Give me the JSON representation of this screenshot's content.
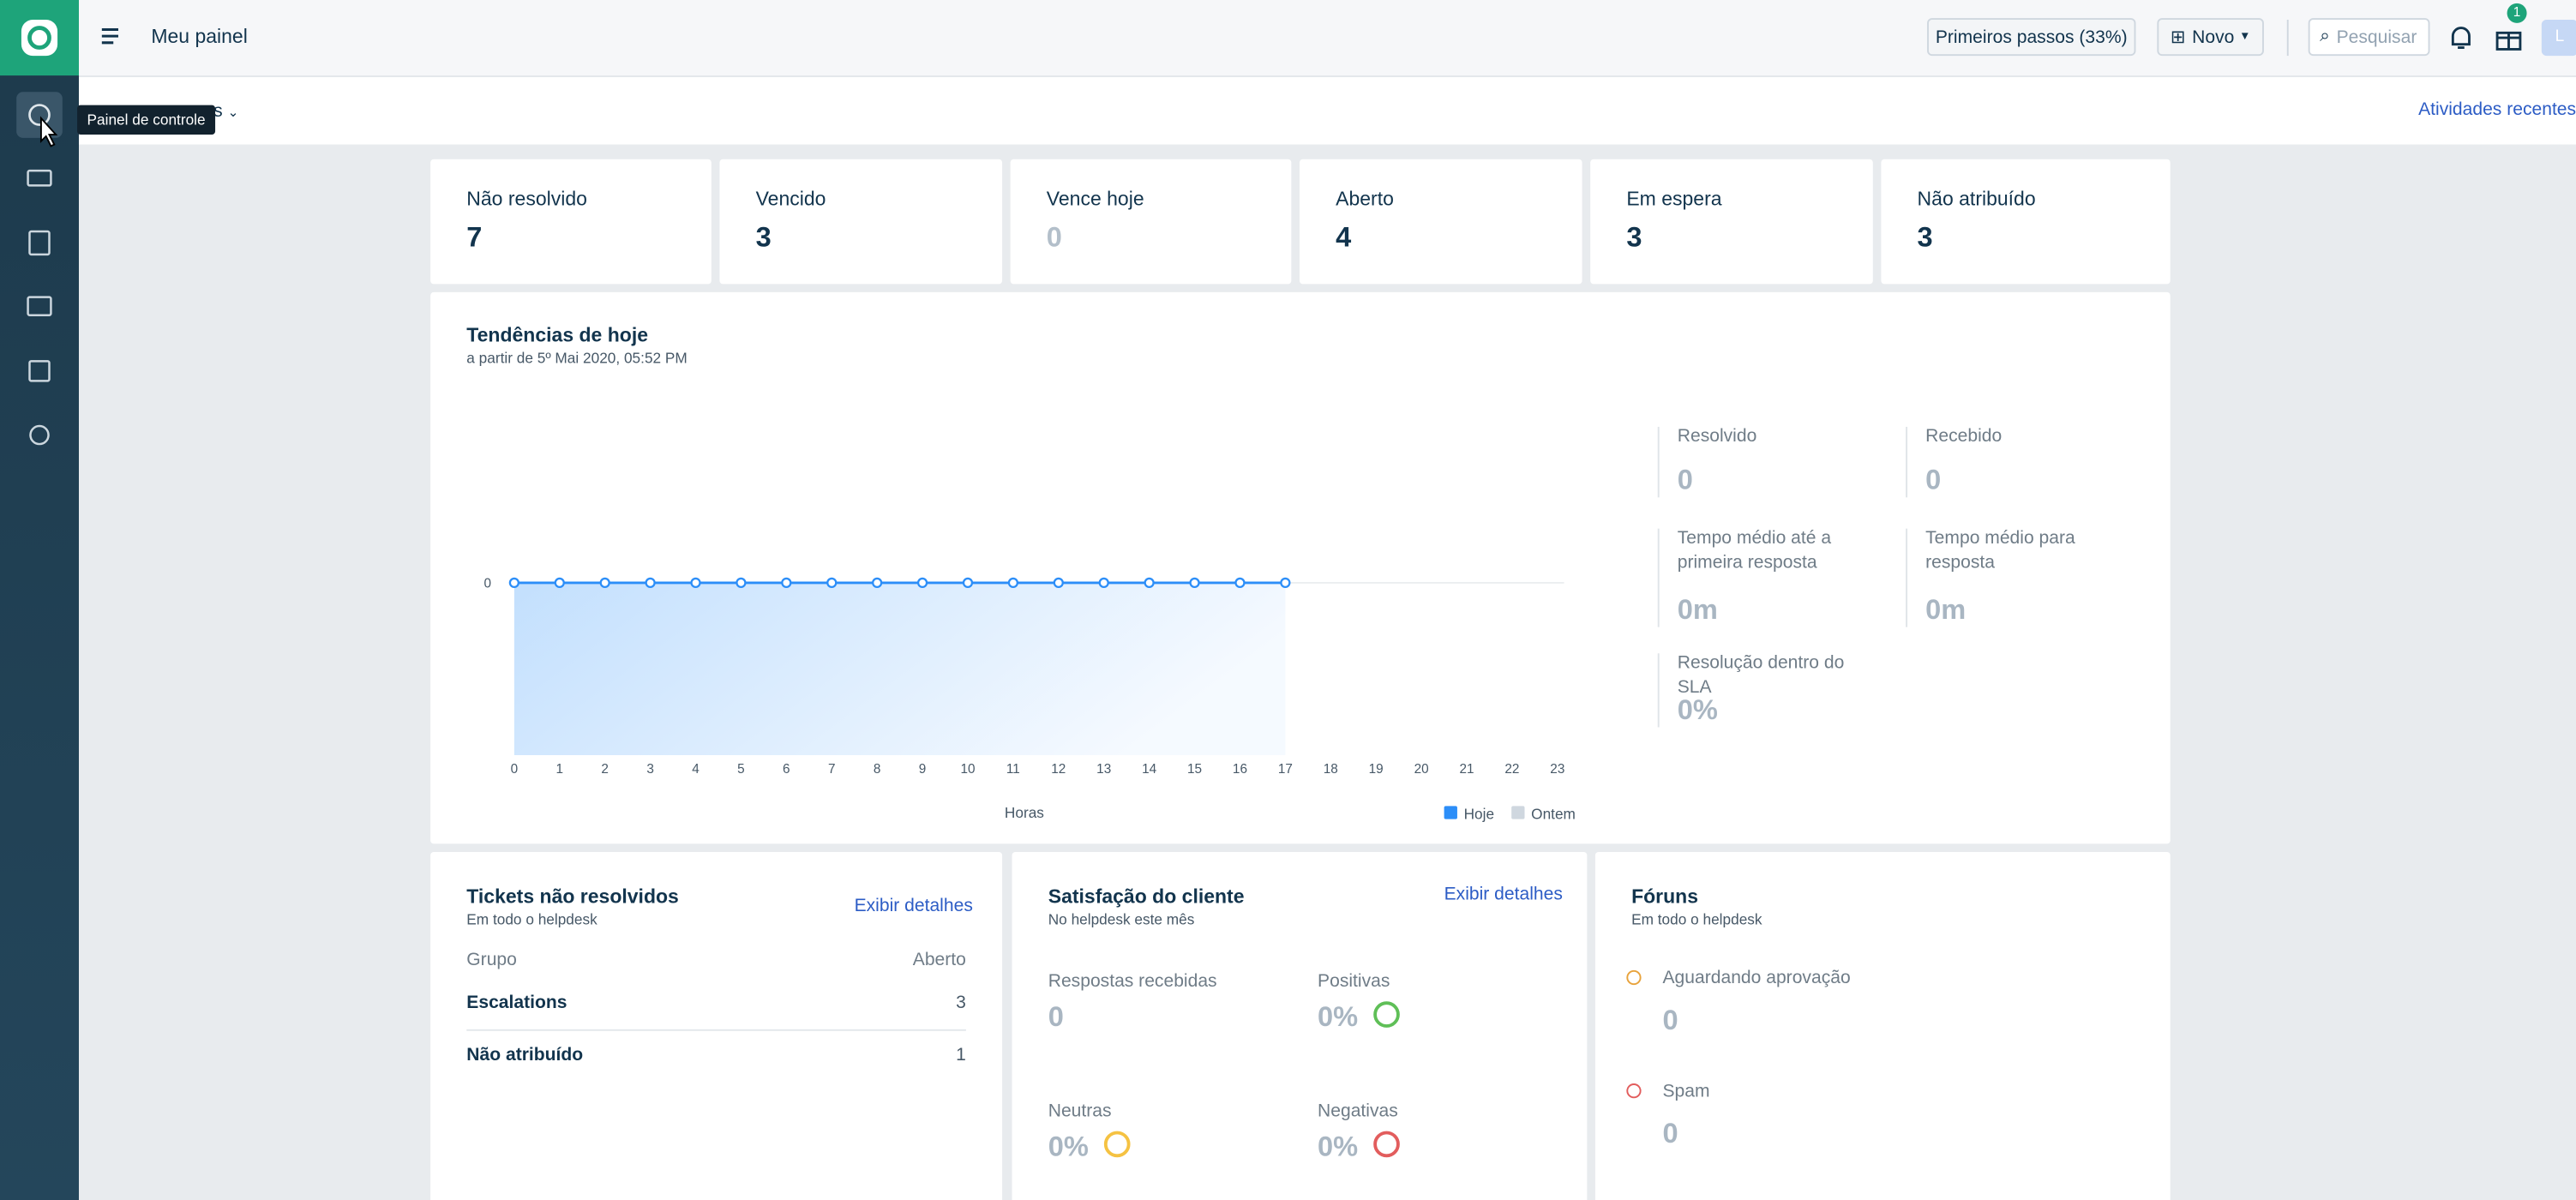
{
  "header": {
    "title": "Meu painel",
    "first_steps": "Primeiros passos (33%)",
    "new": "Novo",
    "search": "Pesquisar",
    "gift_badge": "1",
    "avatar": "L"
  },
  "sidebar": {
    "tooltip": "Painel de controle"
  },
  "subbar": {
    "filter_fragment": "s",
    "recent": "Atividades recentes"
  },
  "stats": [
    {
      "label": "Não resolvido",
      "value": 7
    },
    {
      "label": "Vencido",
      "value": 3
    },
    {
      "label": "Vence hoje",
      "value": 0
    },
    {
      "label": "Aberto",
      "value": 4
    },
    {
      "label": "Em espera",
      "value": 3
    },
    {
      "label": "Não atribuído",
      "value": 3
    }
  ],
  "trends": {
    "title": "Tendências de hoje",
    "subtitle": "a partir de 5º Mai 2020, 05:52 PM"
  },
  "chart_data": {
    "type": "line",
    "x": [
      0,
      1,
      2,
      3,
      4,
      5,
      6,
      7,
      8,
      9,
      10,
      11,
      12,
      13,
      14,
      15,
      16,
      17,
      18,
      19,
      20,
      21,
      22,
      23
    ],
    "xlim": [
      0,
      23
    ],
    "xticks": [
      0,
      1,
      2,
      3,
      4,
      5,
      6,
      7,
      8,
      9,
      10,
      11,
      12,
      13,
      14,
      15,
      16,
      17,
      18,
      19,
      20,
      21,
      22,
      23
    ],
    "xlabel": "Horas",
    "ylim": [
      -1,
      1
    ],
    "yticks": [
      0
    ],
    "grid": true,
    "series": [
      {
        "name": "Hoje",
        "color": "#2c8ef8",
        "values": [
          0,
          0,
          0,
          0,
          0,
          0,
          0,
          0,
          0,
          0,
          0,
          0,
          0,
          0,
          0,
          0,
          0,
          0,
          null,
          null,
          null,
          null,
          null,
          null
        ]
      },
      {
        "name": "Ontem",
        "color": "#cfd7df",
        "values": [
          null,
          null,
          null,
          null,
          null,
          null,
          null,
          null,
          null,
          null,
          null,
          null,
          null,
          null,
          null,
          null,
          null,
          null,
          null,
          null,
          null,
          null,
          null,
          null
        ]
      }
    ]
  },
  "metrics": [
    {
      "label": "Resolvido",
      "value": 0
    },
    {
      "label": "Recebido",
      "value": 0
    },
    {
      "label": "Tempo médio até a primeira resposta",
      "value": "0m"
    },
    {
      "label": "Tempo médio para resposta",
      "value": "0m"
    },
    {
      "label": "Resolução dentro do SLA",
      "value": "0%"
    }
  ],
  "tickets": {
    "title": "Tickets não resolvidos",
    "subtitle": "Em todo o helpdesk",
    "link": "Exibir detalhes",
    "columns": [
      "Grupo",
      "Aberto"
    ],
    "rows": [
      [
        "Escalations",
        3
      ],
      [
        "Não atribuído",
        1
      ]
    ]
  },
  "satisfaction": {
    "title": "Satisfação do cliente",
    "subtitle": "No helpdesk este mês",
    "link": "Exibir detalhes",
    "items": [
      {
        "label": "Respostas recebidas",
        "value": 0
      },
      {
        "label": "Positivas",
        "value": "0%"
      },
      {
        "label": "Neutras",
        "value": "0%"
      },
      {
        "label": "Negativas",
        "value": "0%"
      }
    ]
  },
  "forums": {
    "title": "Fóruns",
    "subtitle": "Em todo o helpdesk",
    "items": [
      {
        "label": "Aguardando aprovação",
        "value": 0
      },
      {
        "label": "Spam",
        "value": 0
      }
    ]
  }
}
